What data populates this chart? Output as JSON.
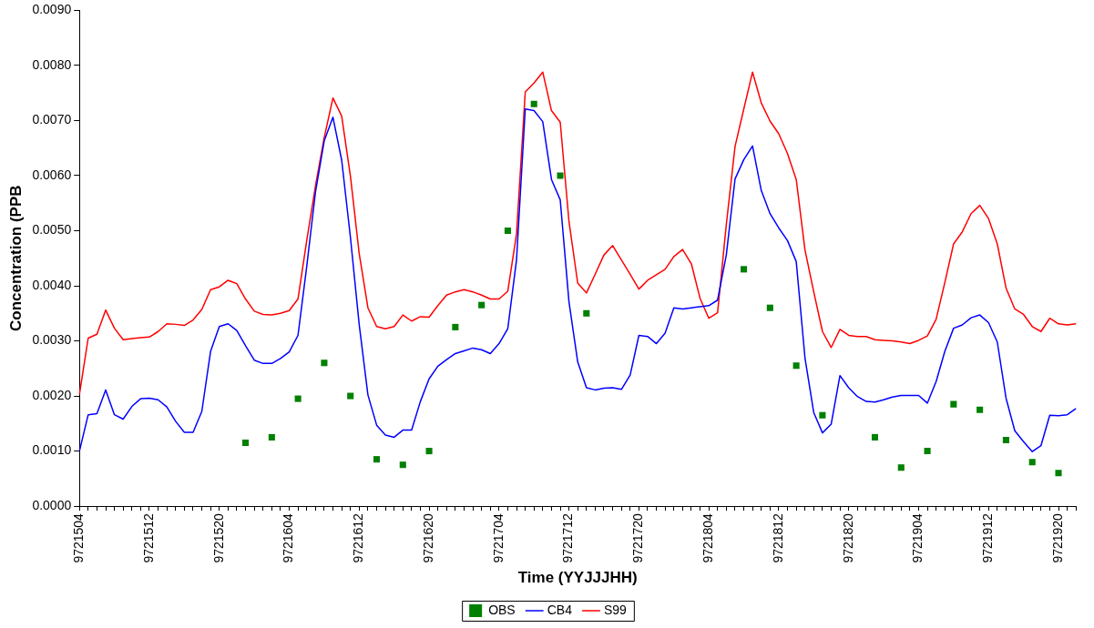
{
  "chart_data": {
    "type": "line",
    "xlabel": "Time (YYJJJHH)",
    "ylabel": "Concentration (PPB",
    "ylim": [
      0,
      0.009
    ],
    "yticks": [
      {
        "value": 0,
        "label": "0.0000"
      },
      {
        "value": 0.001,
        "label": "0.0010"
      },
      {
        "value": 0.002,
        "label": "0.0020"
      },
      {
        "value": 0.003,
        "label": "0.0030"
      },
      {
        "value": 0.004,
        "label": "0.0040"
      },
      {
        "value": 0.005,
        "label": "0.0050"
      },
      {
        "value": 0.006,
        "label": "0.0060"
      },
      {
        "value": 0.007,
        "label": "0.0070"
      },
      {
        "value": 0.008,
        "label": "0.0080"
      },
      {
        "value": 0.009,
        "label": "0.0090"
      }
    ],
    "categories": [
      "9721504",
      null,
      null,
      null,
      null,
      null,
      null,
      null,
      "9721512",
      null,
      null,
      null,
      null,
      null,
      null,
      null,
      "9721520",
      null,
      null,
      null,
      null,
      null,
      null,
      null,
      "9721604",
      null,
      null,
      null,
      null,
      null,
      null,
      null,
      "9721612",
      null,
      null,
      null,
      null,
      null,
      null,
      null,
      "9721620",
      null,
      null,
      null,
      null,
      null,
      null,
      null,
      "9721704",
      null,
      null,
      null,
      null,
      null,
      null,
      null,
      "9721712",
      null,
      null,
      null,
      null,
      null,
      null,
      null,
      "9721720",
      null,
      null,
      null,
      null,
      null,
      null,
      null,
      "9721804",
      null,
      null,
      null,
      null,
      null,
      null,
      null,
      "9721812",
      null,
      null,
      null,
      null,
      null,
      null,
      null,
      "9721820",
      null,
      null,
      null,
      null,
      null,
      null,
      null,
      "9721904",
      null,
      null,
      null,
      null,
      null,
      null,
      null,
      "9721912",
      null,
      null,
      null,
      null,
      null,
      null,
      null,
      "9721920",
      null,
      null
    ],
    "grid": false,
    "legend": "bottom",
    "series": [
      {
        "name": "OBS",
        "type": "scatter",
        "marker": "square",
        "color": "#008000",
        "values": [
          null,
          null,
          null,
          null,
          null,
          null,
          null,
          null,
          null,
          null,
          null,
          null,
          null,
          null,
          null,
          null,
          null,
          null,
          null,
          0.00115,
          null,
          null,
          0.00125,
          null,
          null,
          0.00195,
          null,
          null,
          0.0026,
          null,
          null,
          0.002,
          null,
          null,
          0.00085,
          null,
          null,
          0.00075,
          null,
          null,
          0.001,
          null,
          null,
          0.00325,
          null,
          null,
          0.00365,
          null,
          null,
          0.005,
          null,
          null,
          0.0073,
          null,
          null,
          0.006,
          null,
          null,
          0.0035,
          null,
          null,
          null,
          null,
          null,
          null,
          null,
          null,
          null,
          null,
          null,
          null,
          null,
          null,
          null,
          null,
          null,
          0.0043,
          null,
          null,
          0.0036,
          null,
          null,
          0.00255,
          null,
          null,
          0.00165,
          null,
          null,
          null,
          null,
          null,
          0.00125,
          null,
          null,
          0.0007,
          null,
          null,
          0.001,
          null,
          null,
          0.00185,
          null,
          null,
          0.00175,
          null,
          null,
          0.0012,
          null,
          null,
          0.0008,
          null,
          null,
          0.0006,
          null,
          null
        ]
      },
      {
        "name": "CB4",
        "marker": "none",
        "color": "#0000ff",
        "values": [
          0.001,
          0.00166,
          0.00168,
          0.00211,
          0.00166,
          0.00158,
          0.00181,
          0.00195,
          0.00196,
          0.00193,
          0.0018,
          0.00154,
          0.00134,
          0.00134,
          0.00172,
          0.00281,
          0.00326,
          0.00331,
          0.00319,
          0.00291,
          0.00265,
          0.00259,
          0.00259,
          0.00268,
          0.0028,
          0.0031,
          0.00435,
          0.0057,
          0.00663,
          0.00706,
          0.00628,
          0.00488,
          0.0033,
          0.00202,
          0.00147,
          0.00129,
          0.00125,
          0.00138,
          0.00138,
          0.0019,
          0.00231,
          0.00254,
          0.00266,
          0.00277,
          0.00282,
          0.00287,
          0.00284,
          0.00277,
          0.00295,
          0.00322,
          0.00447,
          0.00721,
          0.00718,
          0.00698,
          0.00593,
          0.00556,
          0.00371,
          0.00262,
          0.00215,
          0.00211,
          0.00214,
          0.00215,
          0.00212,
          0.00238,
          0.0031,
          0.00308,
          0.00295,
          0.00314,
          0.0036,
          0.00358,
          0.0036,
          0.00362,
          0.00364,
          0.00374,
          0.00456,
          0.00594,
          0.00629,
          0.00654,
          0.00573,
          0.00531,
          0.00505,
          0.00482,
          0.00444,
          0.00269,
          0.0017,
          0.00133,
          0.00149,
          0.00237,
          0.00215,
          0.00199,
          0.0019,
          0.00189,
          0.00193,
          0.00198,
          0.00201,
          0.00201,
          0.00201,
          0.00187,
          0.00226,
          0.00281,
          0.00323,
          0.00329,
          0.00342,
          0.00347,
          0.00333,
          0.00298,
          0.00196,
          0.00137,
          0.00117,
          0.00099,
          0.0011,
          0.00165,
          0.00164,
          0.00166,
          0.00177
        ]
      },
      {
        "name": "S99",
        "marker": "none",
        "color": "#ff0000",
        "values": [
          0.00203,
          0.00305,
          0.00312,
          0.00356,
          0.00323,
          0.00302,
          0.00304,
          0.00306,
          0.00307,
          0.00317,
          0.00331,
          0.0033,
          0.00328,
          0.00338,
          0.00357,
          0.00393,
          0.00398,
          0.0041,
          0.00404,
          0.00376,
          0.00354,
          0.00348,
          0.00347,
          0.0035,
          0.00355,
          0.00376,
          0.00482,
          0.00581,
          0.00669,
          0.00741,
          0.00708,
          0.00599,
          0.00459,
          0.0036,
          0.00326,
          0.00322,
          0.00326,
          0.00347,
          0.00336,
          0.00344,
          0.00343,
          0.00364,
          0.00383,
          0.00389,
          0.00393,
          0.00389,
          0.00383,
          0.00376,
          0.00376,
          0.0039,
          0.00494,
          0.00752,
          0.00768,
          0.00788,
          0.00718,
          0.00697,
          0.00517,
          0.00405,
          0.00387,
          0.00421,
          0.00456,
          0.00473,
          0.00447,
          0.00421,
          0.00394,
          0.0041,
          0.0042,
          0.0043,
          0.00453,
          0.00466,
          0.0044,
          0.00377,
          0.00341,
          0.00351,
          0.00511,
          0.00653,
          0.00721,
          0.00788,
          0.00732,
          0.00699,
          0.00676,
          0.0064,
          0.00593,
          0.00465,
          0.00389,
          0.00317,
          0.00288,
          0.00321,
          0.0031,
          0.00308,
          0.00308,
          0.00302,
          0.00301,
          0.003,
          0.00298,
          0.00295,
          0.00301,
          0.00309,
          0.00339,
          0.00406,
          0.00476,
          0.00498,
          0.00531,
          0.00546,
          0.00522,
          0.00476,
          0.00396,
          0.00358,
          0.00348,
          0.00326,
          0.00317,
          0.00341,
          0.00331,
          0.00329,
          0.00331
        ]
      }
    ]
  }
}
